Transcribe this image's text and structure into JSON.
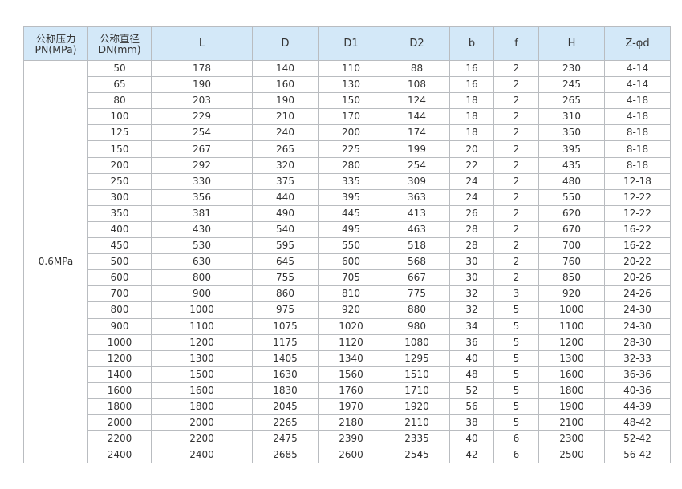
{
  "headers": [
    "公称压力\nPN(MPa)",
    "公称直径\nDN(mm)",
    "L",
    "D",
    "D1",
    "D2",
    "b",
    "f",
    "H",
    "Z-φd"
  ],
  "header_lines": [
    [
      "公称压力",
      "PN(MPa)"
    ],
    [
      "公称直径",
      "DN(mm)"
    ]
  ],
  "pressure": "0.6MPa",
  "rows": [
    [
      "50",
      "178",
      "140",
      "110",
      "88",
      "16",
      "2",
      "230",
      "4-14"
    ],
    [
      "65",
      "190",
      "160",
      "130",
      "108",
      "16",
      "2",
      "245",
      "4-14"
    ],
    [
      "80",
      "203",
      "190",
      "150",
      "124",
      "18",
      "2",
      "265",
      "4-18"
    ],
    [
      "100",
      "229",
      "210",
      "170",
      "144",
      "18",
      "2",
      "310",
      "4-18"
    ],
    [
      "125",
      "254",
      "240",
      "200",
      "174",
      "18",
      "2",
      "350",
      "8-18"
    ],
    [
      "150",
      "267",
      "265",
      "225",
      "199",
      "20",
      "2",
      "395",
      "8-18"
    ],
    [
      "200",
      "292",
      "320",
      "280",
      "254",
      "22",
      "2",
      "435",
      "8-18"
    ],
    [
      "250",
      "330",
      "375",
      "335",
      "309",
      "24",
      "2",
      "480",
      "12-18"
    ],
    [
      "300",
      "356",
      "440",
      "395",
      "363",
      "24",
      "2",
      "550",
      "12-22"
    ],
    [
      "350",
      "381",
      "490",
      "445",
      "413",
      "26",
      "2",
      "620",
      "12-22"
    ],
    [
      "400",
      "430",
      "540",
      "495",
      "463",
      "28",
      "2",
      "670",
      "16-22"
    ],
    [
      "450",
      "530",
      "595",
      "550",
      "518",
      "28",
      "2",
      "700",
      "16-22"
    ],
    [
      "500",
      "630",
      "645",
      "600",
      "568",
      "30",
      "2",
      "760",
      "20-22"
    ],
    [
      "600",
      "800",
      "755",
      "705",
      "667",
      "30",
      "2",
      "850",
      "20-26"
    ],
    [
      "700",
      "900",
      "860",
      "810",
      "775",
      "32",
      "3",
      "920",
      "24-26"
    ],
    [
      "800",
      "1000",
      "975",
      "920",
      "880",
      "32",
      "5",
      "1000",
      "24-30"
    ],
    [
      "900",
      "1100",
      "1075",
      "1020",
      "980",
      "34",
      "5",
      "1100",
      "24-30"
    ],
    [
      "1000",
      "1200",
      "1175",
      "1120",
      "1080",
      "36",
      "5",
      "1200",
      "28-30"
    ],
    [
      "1200",
      "1300",
      "1405",
      "1340",
      "1295",
      "40",
      "5",
      "1300",
      "32-33"
    ],
    [
      "1400",
      "1500",
      "1630",
      "1560",
      "1510",
      "48",
      "5",
      "1600",
      "36-36"
    ],
    [
      "1600",
      "1600",
      "1830",
      "1760",
      "1710",
      "52",
      "5",
      "1800",
      "40-36"
    ],
    [
      "1800",
      "1800",
      "2045",
      "1970",
      "1920",
      "56",
      "5",
      "1900",
      "44-39"
    ],
    [
      "2000",
      "2000",
      "2265",
      "2180",
      "2110",
      "38",
      "5",
      "2100",
      "48-42"
    ],
    [
      "2200",
      "2200",
      "2475",
      "2390",
      "2335",
      "40",
      "6",
      "2300",
      "52-42"
    ],
    [
      "2400",
      "2400",
      "2685",
      "2600",
      "2545",
      "42",
      "6",
      "2500",
      "56-42"
    ]
  ],
  "colors": {
    "header_bg": "#d3e8f8",
    "border": "#b9bcc0"
  }
}
